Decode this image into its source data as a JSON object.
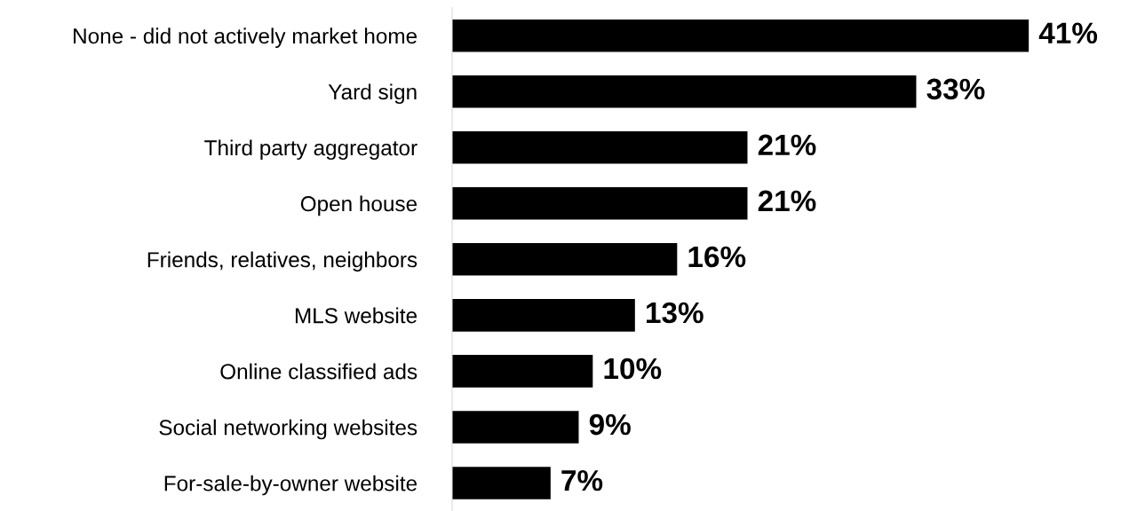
{
  "chart_data": {
    "type": "bar",
    "orientation": "horizontal",
    "categories": [
      "None - did not actively market home",
      "Yard sign",
      "Third party aggregator",
      "Open house",
      "Friends, relatives, neighbors",
      "MLS website",
      "Online classified ads",
      "Social networking websites",
      "For-sale-by-owner website"
    ],
    "values": [
      41,
      33,
      21,
      21,
      16,
      13,
      10,
      9,
      7
    ],
    "value_labels": [
      "41%",
      "33%",
      "21%",
      "21%",
      "16%",
      "13%",
      "10%",
      "9%",
      "7%"
    ],
    "color": "#000000",
    "grid": false,
    "legend": false,
    "tick_labels": "y"
  }
}
